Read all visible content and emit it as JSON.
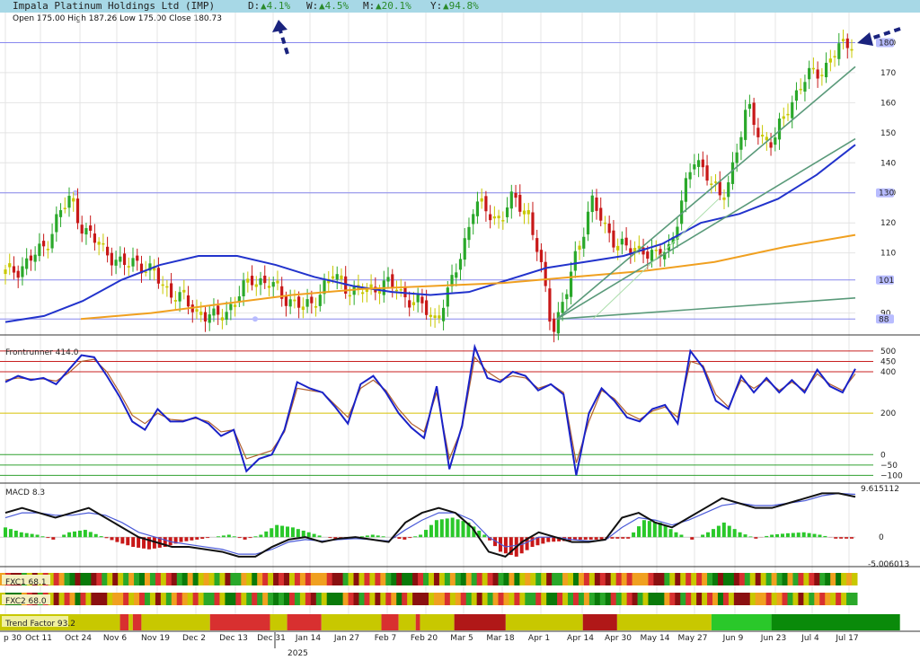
{
  "header": {
    "company": "Impala Platinum Holdings Ltd (IMP)",
    "d_label": "D:",
    "d_value": "▲4.1%",
    "w_label": "W:",
    "w_value": "▲4.5%",
    "m_label": "M:",
    "m_value": "▲20.1%",
    "y_label": "Y:",
    "y_value": "▲94.8%"
  },
  "ohlc": {
    "text": "Open 175.00  High 187.26  Low 175.00  Close 180.73"
  },
  "chart_data": [
    {
      "type": "candlestick",
      "title": "Impala Platinum Holdings Ltd (IMP)",
      "ylim": [
        83,
        190
      ],
      "y_ticks": [
        90,
        110,
        120,
        130,
        140,
        150,
        160,
        170,
        180
      ],
      "highlighted_levels": [
        180,
        130,
        101,
        88
      ],
      "price_path": [
        103,
        105,
        108,
        112,
        122,
        128,
        118,
        113,
        110,
        105,
        108,
        104,
        100,
        96,
        93,
        90,
        88,
        91,
        96,
        102,
        100,
        97,
        94,
        91,
        96,
        102,
        100,
        96,
        98,
        100,
        98,
        95,
        92,
        88,
        96,
        110,
        126,
        124,
        121,
        128,
        125,
        108,
        85,
        95,
        112,
        128,
        118,
        114,
        110,
        112,
        108,
        112,
        128,
        142,
        136,
        126,
        142,
        158,
        149,
        146,
        158,
        165,
        170,
        172,
        178,
        181
      ],
      "moving_averages": [
        {
          "name": "MA50",
          "color": "#2233cc",
          "values": [
            87,
            89,
            94,
            101,
            106,
            109,
            109,
            106,
            102,
            99,
            97,
            96,
            97,
            101,
            105,
            107,
            109,
            113,
            120,
            123,
            128,
            136,
            146
          ]
        },
        {
          "name": "MA200",
          "color": "#f0a020",
          "values": [
            88,
            90,
            93,
            96,
            98,
            99,
            100,
            102,
            104,
            107,
            112,
            116
          ]
        }
      ],
      "trendlines": [
        {
          "from": [
            88,
            "Apr 7"
          ],
          "to": [
            172,
            "Jul 17"
          ]
        },
        {
          "from": [
            88,
            "Apr 7"
          ],
          "to": [
            148,
            "Jul 17"
          ]
        },
        {
          "from": [
            88,
            "Apr 7"
          ],
          "to": [
            95,
            "Jul 17"
          ]
        }
      ]
    },
    {
      "type": "line",
      "title": "Frontrunner 414.0",
      "ylim": [
        -120,
        530
      ],
      "levels": [
        500,
        450,
        400,
        200,
        0,
        -50,
        -100
      ],
      "level_labels": [
        "500",
        "450",
        "400",
        "200",
        "0",
        "−50",
        "−100"
      ],
      "values": [
        350,
        380,
        360,
        370,
        340,
        410,
        480,
        470,
        380,
        280,
        160,
        120,
        220,
        160,
        160,
        180,
        150,
        90,
        120,
        -80,
        -20,
        0,
        120,
        350,
        320,
        300,
        230,
        150,
        340,
        380,
        300,
        200,
        130,
        80,
        330,
        -70,
        140,
        520,
        370,
        350,
        400,
        380,
        310,
        340,
        290,
        -100,
        200,
        320,
        260,
        180,
        160,
        220,
        240,
        150,
        500,
        420,
        260,
        220,
        380,
        300,
        370,
        300,
        360,
        300,
        410,
        330,
        300,
        414
      ],
      "signal_values": [
        360,
        370,
        365,
        365,
        355,
        395,
        450,
        460,
        400,
        300,
        190,
        150,
        200,
        170,
        165,
        175,
        160,
        110,
        120,
        -20,
        0,
        20,
        110,
        320,
        310,
        300,
        240,
        180,
        320,
        360,
        310,
        220,
        150,
        110,
        300,
        -20,
        130,
        470,
        400,
        360,
        380,
        370,
        320,
        340,
        300,
        -40,
        160,
        310,
        270,
        200,
        170,
        210,
        230,
        180,
        450,
        430,
        290,
        230,
        360,
        320,
        360,
        310,
        350,
        310,
        390,
        340,
        310,
        390
      ]
    },
    {
      "type": "bar",
      "title": "MACD 8.3",
      "ylim": [
        -5.5,
        10
      ],
      "y_ticks": [
        "9.615112",
        "0",
        "-5.006013"
      ],
      "histogram": [
        2,
        1,
        0.5,
        -0.5,
        1,
        1.5,
        0.2,
        -1,
        -2,
        -2.5,
        -2,
        -1,
        -0.5,
        0,
        0.5,
        -0.5,
        0.5,
        2.5,
        2,
        1,
        0,
        -0.5,
        0,
        0.5,
        0,
        -0.5,
        0.5,
        3.5,
        4,
        3,
        0.5,
        -3,
        -4,
        -2,
        -1,
        -0.8,
        -0.5,
        -0.5,
        -0.3,
        -0.3,
        3.5,
        3,
        1,
        -0.5,
        1,
        3,
        1,
        -0.3,
        0.5,
        0.8,
        1,
        0.5,
        -0.3,
        -0.3
      ],
      "macd_line": [
        5,
        6,
        5,
        4,
        5,
        6,
        4,
        2,
        0,
        -1,
        -2,
        -2,
        -2.5,
        -3,
        -4,
        -4,
        -2,
        -0.5,
        0,
        -1,
        -0.3,
        0,
        -0.5,
        -1,
        3,
        5,
        6,
        5,
        2,
        -3,
        -4,
        -1,
        1,
        0,
        -1,
        -1,
        -0.5,
        4,
        5,
        3,
        2,
        4,
        6,
        8,
        7,
        6,
        6,
        7,
        8,
        9,
        9,
        8.3
      ],
      "signal_line": [
        4,
        5,
        5,
        4.5,
        4.5,
        5,
        4.5,
        3,
        1,
        0,
        -1,
        -1.5,
        -2,
        -2.5,
        -3.5,
        -3.5,
        -2.5,
        -1,
        -0.5,
        -0.8,
        -0.5,
        -0.3,
        -0.5,
        -0.8,
        1.5,
        3.5,
        5,
        5,
        3.5,
        0,
        -2,
        -1.5,
        0,
        0,
        -0.5,
        -0.8,
        -0.6,
        2,
        4,
        3.5,
        2.5,
        3.5,
        5,
        6.5,
        7,
        6.5,
        6.5,
        7,
        7.5,
        8.5,
        9,
        8.8
      ]
    }
  ],
  "panels": {
    "frontrunner": "Frontrunner 414.0",
    "macd": "MACD 8.3",
    "fxc1": "FXC1 68.1",
    "fxc2": "FXC2 68.0",
    "trend": "Trend Factor 93.2"
  },
  "x_axis": {
    "labels": [
      "p 30",
      "Oct 11",
      "Oct 24",
      "Nov 6",
      "Nov 19",
      "Dec 2",
      "Dec 13",
      "Dec 31",
      "Jan 14",
      "Jan 27",
      "Feb 7",
      "Feb 20",
      "Mar 5",
      "Mar 18",
      "Apr 1",
      "Apr 14",
      "Apr 30",
      "May 14",
      "May 27",
      "Jun 9",
      "Jun 23",
      "Jul 4",
      "Jul 17"
    ],
    "year_label": "2025"
  },
  "fxc1_colors": [
    "#f0a020",
    "#c8c800",
    "#2aa82a",
    "#d83030",
    "#8a1010",
    "#2aa82a",
    "#c8c800",
    "#d83030",
    "#2aa82a",
    "#0a7a0a",
    "#f0a020",
    "#c8c800",
    "#d83030",
    "#2aa82a",
    "#8a1010",
    "#0a7a0a",
    "#f0a020",
    "#c8c800",
    "#d83030",
    "#2aa82a",
    "#c8c800",
    "#d83030",
    "#8a1010",
    "#2aa82a",
    "#0a7a0a",
    "#f0a020",
    "#c8c800",
    "#d83030",
    "#8a1010",
    "#2aa82a",
    "#0a7a0a",
    "#c8c800",
    "#f0a020",
    "#d83030",
    "#8a1010",
    "#2aa82a",
    "#c8c800",
    "#0a7a0a",
    "#f0a020",
    "#d83030"
  ],
  "fxc2_colors": [
    "#c8c800",
    "#f0a020",
    "#d83030",
    "#2aa82a",
    "#8a1010",
    "#c8c800",
    "#2aa82a",
    "#0a7a0a",
    "#d83030",
    "#f0a020",
    "#c8c800",
    "#2aa82a",
    "#8a1010",
    "#d83030",
    "#0a7a0a",
    "#f0a020",
    "#c8c800",
    "#2aa82a",
    "#d83030",
    "#8a1010",
    "#c8c800",
    "#2aa82a",
    "#0a7a0a",
    "#f0a020",
    "#d83030",
    "#8a1010",
    "#c8c800",
    "#2aa82a",
    "#0a7a0a",
    "#f0a020",
    "#d83030",
    "#c8c800",
    "#2aa82a",
    "#8a1010",
    "#f0a020",
    "#0a7a0a",
    "#d83030",
    "#c8c800",
    "#2aa82a",
    "#f0a020"
  ],
  "trend_segments": [
    [
      "#c8c800",
      0.14
    ],
    [
      "#d83030",
      0.01
    ],
    [
      "#c8c800",
      0.005
    ],
    [
      "#d83030",
      0.01
    ],
    [
      "#c8c800",
      0.08
    ],
    [
      "#d83030",
      0.07
    ],
    [
      "#c8c800",
      0.02
    ],
    [
      "#d83030",
      0.04
    ],
    [
      "#c8c800",
      0.07
    ],
    [
      "#d83030",
      0.02
    ],
    [
      "#c8c800",
      0.02
    ],
    [
      "#d83030",
      0.005
    ],
    [
      "#c8c800",
      0.04
    ],
    [
      "#b01818",
      0.06
    ],
    [
      "#c8c800",
      0.09
    ],
    [
      "#b01818",
      0.04
    ],
    [
      "#c8c800",
      0.11
    ],
    [
      "#2ac82a",
      0.07
    ],
    [
      "#0a8a0a",
      0.15
    ]
  ],
  "colors": {
    "topbar": "#a7d8e6",
    "ma50": "#2233cc",
    "ma200": "#f0a020",
    "up": "#2aa82a",
    "down": "#c81818",
    "neutral": "#c8c800",
    "trendline": "#5a9a7a"
  }
}
